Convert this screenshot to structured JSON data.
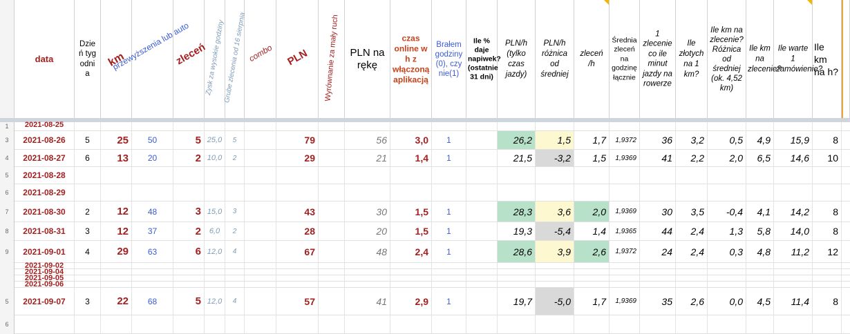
{
  "headers": {
    "data": "data",
    "dzien": "Dzień tygodnia",
    "km": "km",
    "przewyzszenia": "przewyższenia lub auto",
    "zlecen": "zleceń",
    "zysk": "Zysk za wysokie godziny",
    "grube": "Grube zlecenia od 16 sierpnia",
    "combo": "combo",
    "pln": "PLN",
    "wyrownanie": "Wyrównanie za mały ruch",
    "pln_na_reke": "PLN na rękę",
    "czas_online": "czas online w h z włączoną aplikacją",
    "bralem": "Brałem godziny (0), czy nie(1)",
    "ile_procent": "Ile % daje napiwek? (ostatnie 31 dni)",
    "pln_h": "PLN/h (tylko czas jazdy)",
    "pln_h_roznica": "PLN/h różnica od średniej",
    "zlecen_h": "zleceń /h",
    "srednia": "Średnia zleceń na godzinę łącznie",
    "minuty": "1 zlecenie co ile minut jazdy na rowerze",
    "zlotych_km": "Ile złotych na 1 km?",
    "km_roznica": "Ile km na zlecenie? Różnica od średniej (ok. 4,52 km)",
    "km_zlecenie": "Ile km na zlecenie?",
    "warte": "Ile warte 1 zamówienie?",
    "km_h": "Ile km na h?"
  },
  "rows": [
    {
      "num": "1",
      "date": "2021-08-25",
      "partial": true
    },
    {
      "num": "3",
      "date": "2021-08-26",
      "dzien": "5",
      "km": "25",
      "przew": "50",
      "zlecen": "5",
      "zysk": "25,0",
      "grube": "5",
      "combo": "",
      "pln": "79",
      "wyr": "",
      "reka": "56",
      "czas": "3,0",
      "bral": "1",
      "proc": "",
      "plnh": "26,2",
      "roz": "1,5",
      "zlh": "1,7",
      "sr": "1,9372",
      "min": "36",
      "zl_km": "3,2",
      "kmroz": "0,5",
      "kmzl": "4,9",
      "wart": "15,9",
      "kmh": "8"
    },
    {
      "num": "4",
      "date": "2021-08-27",
      "dzien": "6",
      "km": "13",
      "przew": "20",
      "zlecen": "2",
      "zysk": "10,0",
      "grube": "2",
      "combo": "",
      "pln": "29",
      "wyr": "",
      "reka": "21",
      "czas": "1,4",
      "bral": "1",
      "proc": "",
      "plnh": "21,5",
      "roz": "-3,2",
      "zlh": "1,5",
      "sr": "1,9369",
      "min": "41",
      "zl_km": "2,2",
      "kmroz": "2,0",
      "kmzl": "6,5",
      "wart": "14,6",
      "kmh": "10"
    },
    {
      "num": "5",
      "date": "2021-08-28"
    },
    {
      "num": "6",
      "date": "2021-08-29"
    },
    {
      "num": "7",
      "date": "2021-08-30",
      "dzien": "2",
      "km": "12",
      "przew": "48",
      "zlecen": "3",
      "zysk": "15,0",
      "grube": "3",
      "combo": "",
      "pln": "43",
      "wyr": "",
      "reka": "30",
      "czas": "1,5",
      "bral": "1",
      "proc": "",
      "plnh": "28,3",
      "roz": "3,6",
      "zlh": "2,0",
      "sr": "1,9369",
      "min": "30",
      "zl_km": "3,5",
      "kmroz": "-0,4",
      "kmzl": "4,1",
      "wart": "14,2",
      "kmh": "8"
    },
    {
      "num": "8",
      "date": "2021-08-31",
      "dzien": "3",
      "km": "12",
      "przew": "37",
      "zlecen": "2",
      "zysk": "6,0",
      "grube": "2",
      "combo": "",
      "pln": "28",
      "wyr": "",
      "reka": "20",
      "czas": "1,5",
      "bral": "1",
      "proc": "",
      "plnh": "19,3",
      "roz": "-5,4",
      "zlh": "1,4",
      "sr": "1,9365",
      "min": "44",
      "zl_km": "2,4",
      "kmroz": "1,3",
      "kmzl": "5,8",
      "wart": "14,0",
      "kmh": "8"
    },
    {
      "num": "9",
      "date": "2021-09-01",
      "dzien": "4",
      "km": "29",
      "przew": "63",
      "zlecen": "6",
      "zysk": "12,0",
      "grube": "4",
      "combo": "",
      "pln": "67",
      "wyr": "",
      "reka": "48",
      "czas": "2,4",
      "bral": "1",
      "proc": "",
      "plnh": "28,6",
      "roz": "3,9",
      "zlh": "2,6",
      "sr": "1,9372",
      "min": "24",
      "zl_km": "2,4",
      "kmroz": "0,3",
      "kmzl": "4,8",
      "wart": "11,2",
      "kmh": "12"
    },
    {
      "num": "",
      "date": "2021-09-02",
      "partial": true
    },
    {
      "num": "",
      "date": "2021-09-04",
      "partial": true
    },
    {
      "num": "",
      "date": "2021-09-05",
      "partial": true
    },
    {
      "num": "",
      "date": "2021-09-06",
      "partial": true
    },
    {
      "num": "5",
      "date": "2021-09-07",
      "dzien": "3",
      "km": "22",
      "przew": "68",
      "zlecen": "5",
      "zysk": "12,0",
      "grube": "4",
      "combo": "",
      "pln": "57",
      "wyr": "",
      "reka": "41",
      "czas": "2,9",
      "bral": "1",
      "proc": "",
      "plnh": "19,7",
      "roz": "-5,0",
      "zlh": "1,7",
      "sr": "1,9369",
      "min": "35",
      "zl_km": "2,6",
      "kmroz": "0,0",
      "kmzl": "4,5",
      "wart": "11,4",
      "kmh": "8"
    },
    {
      "num": "6",
      "date": ""
    }
  ],
  "colors": {
    "accent_red": "#a32020",
    "accent_blue": "#3a5bd6",
    "green_fill": "#b7e1c9",
    "yellow_fill": "#fdf8d0",
    "gray_fill": "#d9d9d9"
  }
}
